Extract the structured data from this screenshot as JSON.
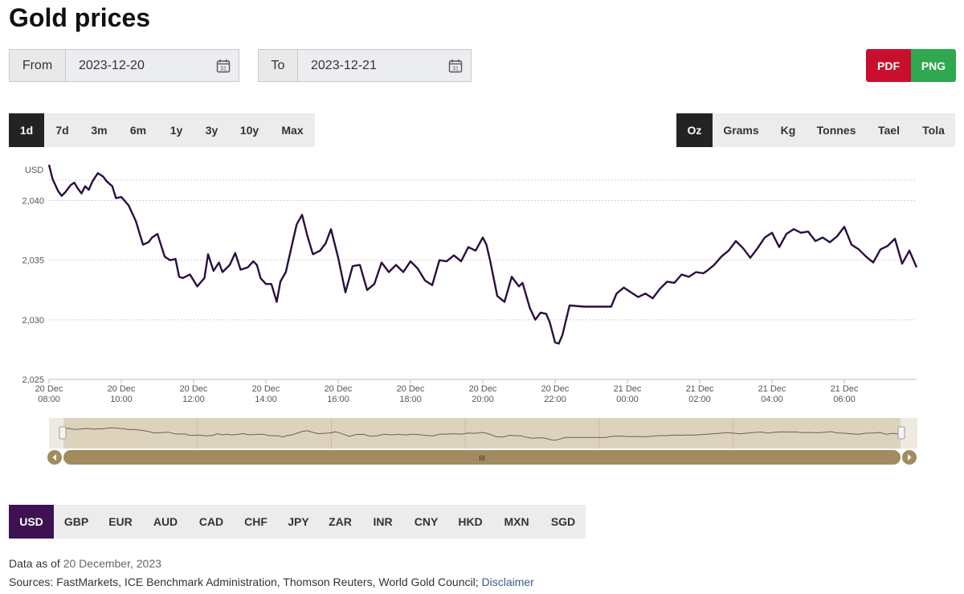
{
  "page": {
    "title": "Gold prices"
  },
  "date_range": {
    "from_label": "From",
    "from_value": "2023-12-20",
    "to_label": "To",
    "to_value": "2023-12-21",
    "calendar_icon": "calendar-icon",
    "calendar_day": "31"
  },
  "export": {
    "pdf_label": "PDF",
    "png_label": "PNG",
    "pdf_color": "#c8102e",
    "png_color": "#2fa84f"
  },
  "ranges": {
    "items": [
      "1d",
      "7d",
      "3m",
      "6m",
      "1y",
      "3y",
      "10y",
      "Max"
    ],
    "active": "1d"
  },
  "units": {
    "items": [
      "Oz",
      "Grams",
      "Kg",
      "Tonnes",
      "Tael",
      "Tola"
    ],
    "active": "Oz"
  },
  "currencies": {
    "items": [
      "USD",
      "GBP",
      "EUR",
      "AUD",
      "CAD",
      "CHF",
      "JPY",
      "ZAR",
      "INR",
      "CNY",
      "HKD",
      "MXN",
      "SGD"
    ],
    "active": "USD",
    "active_color": "#3d1152"
  },
  "navigator": {
    "handle_icon": "grip-icon",
    "handle_glyph": "III",
    "left_arrow": "arrow-left-icon",
    "right_arrow": "arrow-right-icon"
  },
  "footer": {
    "data_as_of_label": "Data as of",
    "data_as_of_date": "20 December, 2023",
    "sources_label": "Sources: FastMarkets, ICE Benchmark Administration, Thomson Reuters, World Gold Council;",
    "disclaimer_link": "Disclaimer"
  },
  "chart_data": {
    "type": "line",
    "ylabel": "USD",
    "ylim": [
      2025,
      2043
    ],
    "yticks": [
      2025,
      2030,
      2035,
      2040
    ],
    "ytick_labels": [
      "2,025",
      "2,030",
      "2,035",
      "2,040"
    ],
    "xlim": [
      0,
      24
    ],
    "xticks": [
      {
        "x": 0,
        "line1": "20 Dec",
        "line2": "08:00"
      },
      {
        "x": 2,
        "line1": "20 Dec",
        "line2": "10:00"
      },
      {
        "x": 4,
        "line1": "20 Dec",
        "line2": "12:00"
      },
      {
        "x": 6,
        "line1": "20 Dec",
        "line2": "14:00"
      },
      {
        "x": 8,
        "line1": "20 Dec",
        "line2": "16:00"
      },
      {
        "x": 10,
        "line1": "20 Dec",
        "line2": "18:00"
      },
      {
        "x": 12,
        "line1": "20 Dec",
        "line2": "20:00"
      },
      {
        "x": 14,
        "line1": "20 Dec",
        "line2": "22:00"
      },
      {
        "x": 16,
        "line1": "21 Dec",
        "line2": "00:00"
      },
      {
        "x": 18,
        "line1": "21 Dec",
        "line2": "02:00"
      },
      {
        "x": 20,
        "line1": "21 Dec",
        "line2": "04:00"
      },
      {
        "x": 22,
        "line1": "21 Dec",
        "line2": "06:00"
      }
    ],
    "grid": "horizontal",
    "line_color": "#2a0f3f",
    "series": [
      {
        "x": [
          0,
          0.1,
          0.25,
          0.35,
          0.45,
          0.6,
          0.7,
          0.8,
          0.9,
          1.0,
          1.1,
          1.2,
          1.35,
          1.5,
          1.6,
          1.75,
          1.85,
          2.0,
          2.2,
          2.4,
          2.6,
          2.75,
          2.85,
          3.0,
          3.2,
          3.35,
          3.5,
          3.6,
          3.7,
          3.9,
          4.1,
          4.3,
          4.4,
          4.55,
          4.7,
          4.8,
          5.0,
          5.15,
          5.3,
          5.5,
          5.65,
          5.75,
          5.85,
          6.0,
          6.15,
          6.3,
          6.4,
          6.55,
          6.7,
          6.85,
          7.0,
          7.15,
          7.3,
          7.5,
          7.65,
          7.8,
          8.0,
          8.2,
          8.4,
          8.6,
          8.8,
          9.0,
          9.2,
          9.4,
          9.6,
          9.8,
          10.0,
          10.2,
          10.4,
          10.6,
          10.8,
          11.0,
          11.2,
          11.4,
          11.6,
          11.8,
          12.0,
          12.1,
          12.2,
          12.4,
          12.6,
          12.8,
          13.0,
          13.1,
          13.3,
          13.45,
          13.6,
          13.75,
          13.85,
          14.0,
          14.1,
          14.2,
          14.4,
          14.8,
          15.2,
          15.55,
          15.7,
          15.9,
          16.1,
          16.3,
          16.5,
          16.7,
          16.9,
          17.1,
          17.3,
          17.5,
          17.7,
          17.9,
          18.1,
          18.2,
          18.4,
          18.6,
          18.8,
          19.0,
          19.2,
          19.4,
          19.6,
          19.8,
          20.0,
          20.2,
          20.4,
          20.6,
          20.8,
          21.0,
          21.2,
          21.4,
          21.6,
          21.8,
          22.0,
          22.2,
          22.4,
          22.6,
          22.8,
          23.0,
          23.2,
          23.4,
          23.6,
          23.8,
          24.0
        ],
        "values": [
          2043.0,
          2041.8,
          2040.8,
          2040.4,
          2040.7,
          2041.3,
          2041.5,
          2041.0,
          2040.6,
          2041.2,
          2040.9,
          2041.6,
          2042.3,
          2042.0,
          2041.6,
          2041.2,
          2040.2,
          2040.3,
          2039.6,
          2038.3,
          2036.3,
          2036.5,
          2036.9,
          2037.2,
          2035.3,
          2035.0,
          2035.1,
          2033.6,
          2033.5,
          2033.8,
          2032.8,
          2033.5,
          2035.5,
          2034.1,
          2034.8,
          2034.0,
          2034.6,
          2035.6,
          2034.2,
          2034.4,
          2034.9,
          2034.6,
          2033.5,
          2033.0,
          2033.0,
          2031.5,
          2033.2,
          2034.0,
          2036.0,
          2038.0,
          2038.8,
          2037.0,
          2035.5,
          2035.8,
          2036.4,
          2037.6,
          2035.2,
          2032.3,
          2034.5,
          2034.6,
          2032.5,
          2033.0,
          2034.8,
          2034.0,
          2034.6,
          2034.0,
          2034.9,
          2034.3,
          2033.3,
          2032.9,
          2035.0,
          2034.9,
          2035.4,
          2034.9,
          2036.1,
          2035.8,
          2036.9,
          2036.3,
          2035.0,
          2032.0,
          2031.5,
          2033.6,
          2032.8,
          2033.1,
          2031.0,
          2030.0,
          2030.6,
          2030.5,
          2029.8,
          2028.1,
          2028.0,
          2028.7,
          2031.2,
          2031.1,
          2031.1,
          2031.1,
          2032.2,
          2032.7,
          2032.3,
          2031.9,
          2032.2,
          2031.8,
          2032.6,
          2033.2,
          2033.1,
          2033.8,
          2033.6,
          2034.0,
          2033.9,
          2034.1,
          2034.6,
          2035.3,
          2035.8,
          2036.6,
          2036.0,
          2035.2,
          2036.0,
          2036.9,
          2037.3,
          2036.1,
          2037.2,
          2037.6,
          2037.3,
          2037.4,
          2036.6,
          2036.9,
          2036.5,
          2037.0,
          2037.8,
          2036.3,
          2035.9,
          2035.3,
          2034.8,
          2035.9,
          2036.2,
          2036.8,
          2034.7,
          2035.8,
          2034.4
        ]
      }
    ]
  }
}
